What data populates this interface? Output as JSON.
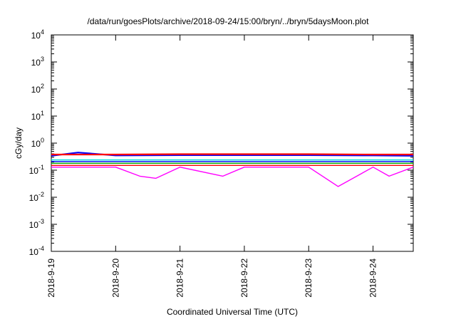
{
  "chart_data": {
    "type": "line",
    "title": "/data/run/goesPlots/archive/2018-09-24/15:00/bryn/../bryn/5daysMoon.plot",
    "xlabel": "Coordinated Universal Time (UTC)",
    "ylabel": "cGy/day",
    "yscale": "log",
    "ylim": [
      0.0001,
      10000
    ],
    "y_ticks": [
      {
        "value": 0.0001,
        "base": "10",
        "exp": "-4"
      },
      {
        "value": 0.001,
        "base": "10",
        "exp": "-3"
      },
      {
        "value": 0.01,
        "base": "10",
        "exp": "-2"
      },
      {
        "value": 0.1,
        "base": "10",
        "exp": "-1"
      },
      {
        "value": 1,
        "base": "10",
        "exp": "0"
      },
      {
        "value": 10,
        "base": "10",
        "exp": "1"
      },
      {
        "value": 100,
        "base": "10",
        "exp": "2"
      },
      {
        "value": 1000,
        "base": "10",
        "exp": "3"
      },
      {
        "value": 10000,
        "base": "10",
        "exp": "4"
      }
    ],
    "xlim": [
      "2018-09-19",
      "2018-09-24 15:00"
    ],
    "x_tick_labels": [
      "2018-9-19",
      "2018-9-20",
      "2018-9-21",
      "2018-9-22",
      "2018-9-23",
      "2018-9-24"
    ],
    "grid": false,
    "series": [
      {
        "color": "#ff00ff",
        "x": [
          "2018-09-19 00:00",
          "2018-09-19 12:00",
          "2018-09-20 00:00",
          "2018-09-20 09:00",
          "2018-09-20 15:00",
          "2018-09-21 00:00",
          "2018-09-21 16:00",
          "2018-09-22 00:00",
          "2018-09-22 12:00",
          "2018-09-23 00:00",
          "2018-09-23 11:00",
          "2018-09-24 00:00",
          "2018-09-24 06:00",
          "2018-09-24 15:00"
        ],
        "values": [
          0.13,
          0.13,
          0.13,
          0.06,
          0.05,
          0.13,
          0.06,
          0.13,
          0.13,
          0.13,
          0.025,
          0.13,
          0.06,
          0.13
        ]
      },
      {
        "color": "#ff0000",
        "x": [
          "2018-09-19 00:00",
          "2018-09-20 00:00",
          "2018-09-21 00:00",
          "2018-09-22 00:00",
          "2018-09-23 00:00",
          "2018-09-24 00:00",
          "2018-09-24 15:00"
        ],
        "values": [
          0.15,
          0.15,
          0.15,
          0.15,
          0.15,
          0.15,
          0.15
        ]
      },
      {
        "color": "#00aa00",
        "x": [
          "2018-09-19 00:00",
          "2018-09-20 00:00",
          "2018-09-21 00:00",
          "2018-09-22 00:00",
          "2018-09-23 00:00",
          "2018-09-24 00:00",
          "2018-09-24 15:00"
        ],
        "values": [
          0.18,
          0.18,
          0.18,
          0.18,
          0.18,
          0.18,
          0.18
        ]
      },
      {
        "color": "#0000ff",
        "x": [
          "2018-09-19 00:00",
          "2018-09-20 00:00",
          "2018-09-21 00:00",
          "2018-09-22 00:00",
          "2018-09-23 00:00",
          "2018-09-24 00:00",
          "2018-09-24 15:00"
        ],
        "values": [
          0.21,
          0.21,
          0.21,
          0.21,
          0.21,
          0.21,
          0.21
        ]
      },
      {
        "color": "#00dddd",
        "x": [
          "2018-09-19 00:00",
          "2018-09-20 00:00",
          "2018-09-21 00:00",
          "2018-09-22 00:00",
          "2018-09-23 00:00",
          "2018-09-24 00:00",
          "2018-09-24 15:00"
        ],
        "values": [
          0.24,
          0.24,
          0.24,
          0.24,
          0.24,
          0.24,
          0.24
        ]
      },
      {
        "color": "#0000ff",
        "x": [
          "2018-09-19 00:00",
          "2018-09-19 10:00",
          "2018-09-20 00:00",
          "2018-09-21 00:00",
          "2018-09-22 00:00",
          "2018-09-23 00:00",
          "2018-09-24 00:00",
          "2018-09-24 15:00"
        ],
        "values": [
          0.34,
          0.45,
          0.35,
          0.36,
          0.36,
          0.36,
          0.35,
          0.34
        ]
      },
      {
        "color": "#ff0000",
        "x": [
          "2018-09-19 00:00",
          "2018-09-20 00:00",
          "2018-09-21 00:00",
          "2018-09-22 00:00",
          "2018-09-23 00:00",
          "2018-09-24 00:00",
          "2018-09-24 15:00"
        ],
        "values": [
          0.38,
          0.38,
          0.39,
          0.39,
          0.39,
          0.38,
          0.38
        ]
      }
    ]
  }
}
